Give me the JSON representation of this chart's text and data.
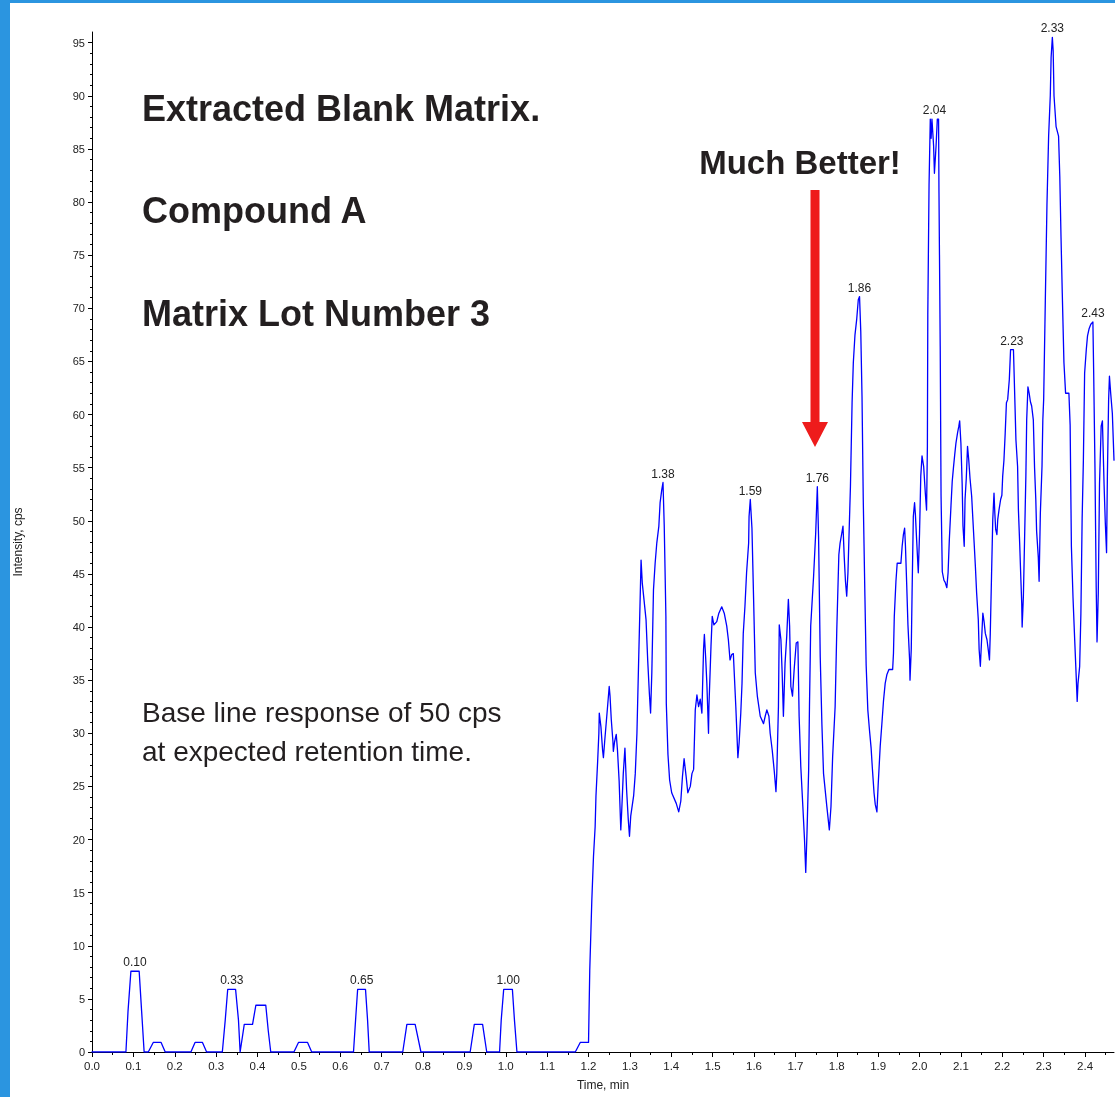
{
  "chart_data": {
    "type": "line",
    "xlabel": "Time, min",
    "ylabel": "Intensity, cps",
    "color": "#0000ff",
    "marker": "none",
    "line_style": "solid",
    "xlim": [
      0,
      2.47
    ],
    "ylim": [
      0,
      96
    ],
    "xticks": [
      {
        "value": 0,
        "label": "0.0"
      },
      0.1,
      0.2,
      0.3,
      0.4,
      0.5,
      0.6,
      0.7,
      0.8,
      0.9,
      {
        "value": 1,
        "label": "1.0"
      },
      1.1,
      1.2,
      1.3,
      1.4,
      1.5,
      1.6,
      1.7,
      1.8,
      1.9,
      {
        "value": 2,
        "label": "2.0"
      },
      2.1,
      2.2,
      2.3,
      2.4
    ],
    "yticks": [
      0,
      5,
      10,
      15,
      20,
      25,
      30,
      35,
      40,
      45,
      50,
      55,
      60,
      65,
      70,
      75,
      80,
      85,
      90,
      95
    ],
    "x": [
      0,
      0.082,
      0.087,
      0.094,
      0.114,
      0.12,
      0.126,
      0.136,
      0.148,
      0.167,
      0.177,
      0.239,
      0.249,
      0.267,
      0.277,
      0.315,
      0.322,
      0.328,
      0.347,
      0.354,
      0.358,
      0.368,
      0.388,
      0.396,
      0.42,
      0.426,
      0.432,
      0.488,
      0.499,
      0.521,
      0.531,
      0.632,
      0.637,
      0.642,
      0.661,
      0.666,
      0.67,
      0.751,
      0.761,
      0.781,
      0.795,
      0.914,
      0.924,
      0.944,
      0.954,
      0.985,
      0.989,
      0.995,
      1.016,
      1.021,
      1.027,
      1.168,
      1.18,
      1.2,
      1.203,
      1.208,
      1.212,
      1.216,
      1.218,
      1.222,
      1.225,
      1.226,
      1.23,
      1.234,
      1.236,
      1.239,
      1.246,
      1.25,
      1.252,
      1.255,
      1.259,
      1.26,
      1.263,
      1.267,
      1.27,
      1.274,
      1.278,
      1.28,
      1.284,
      1.288,
      1.292,
      1.296,
      1.299,
      1.302,
      1.309,
      1.313,
      1.317,
      1.321,
      1.325,
      1.327,
      1.33,
      1.334,
      1.339,
      1.343,
      1.347,
      1.35,
      1.353,
      1.357,
      1.361,
      1.365,
      1.37,
      1.373,
      1.377,
      1.38,
      1.383,
      1.387,
      1.388,
      1.392,
      1.396,
      1.401,
      1.412,
      1.418,
      1.423,
      1.427,
      1.431,
      1.436,
      1.44,
      1.446,
      1.45,
      1.454,
      1.458,
      1.462,
      1.466,
      1.47,
      1.474,
      1.478,
      1.48,
      1.483,
      1.486,
      1.49,
      1.491,
      1.496,
      1.499,
      1.503,
      1.51,
      1.515,
      1.522,
      1.528,
      1.534,
      1.538,
      1.542,
      1.546,
      1.55,
      1.556,
      1.561,
      1.564,
      1.568,
      1.571,
      1.574,
      1.578,
      1.582,
      1.587,
      1.588,
      1.591,
      1.595,
      1.599,
      1.603,
      1.608,
      1.615,
      1.623,
      1.627,
      1.631,
      1.636,
      1.639,
      1.644,
      1.649,
      1.653,
      1.655,
      1.659,
      1.661,
      1.665,
      1.668,
      1.671,
      1.675,
      1.679,
      1.683,
      1.686,
      1.689,
      1.693,
      1.697,
      1.702,
      1.706,
      1.709,
      1.713,
      1.718,
      1.722,
      1.725,
      1.728,
      1.732,
      1.734,
      1.737,
      1.744,
      1.749,
      1.753,
      1.756,
      1.76,
      1.764,
      1.768,
      1.776,
      1.782,
      1.786,
      1.79,
      1.796,
      1.8,
      1.805,
      1.808,
      1.812,
      1.815,
      1.818,
      1.821,
      1.824,
      1.827,
      1.83,
      1.833,
      1.837,
      1.84,
      1.844,
      1.848,
      1.852,
      1.855,
      1.858,
      1.861,
      1.864,
      1.868,
      1.871,
      1.875,
      1.879,
      1.883,
      1.886,
      1.89,
      1.893,
      1.897,
      1.9,
      1.905,
      1.909,
      1.913,
      1.917,
      1.921,
      1.926,
      1.935,
      1.937,
      1.939,
      1.943,
      1.946,
      1.955,
      1.958,
      1.961,
      1.964,
      1.966,
      1.969,
      1.972,
      1.976,
      1.977,
      1.98,
      1.982,
      1.985,
      1.988,
      1.99,
      1.993,
      1.997,
      2.0,
      2.003,
      2.006,
      2.01,
      2.014,
      2.017,
      2.019,
      2.02,
      2.023,
      2.026,
      2.028,
      2.03,
      2.034,
      2.036,
      2.04,
      2.043,
      2.046,
      2.047,
      2.05,
      2.052,
      2.055,
      2.059,
      2.062,
      2.066,
      2.069,
      2.072,
      2.076,
      2.079,
      2.082,
      2.085,
      2.088,
      2.092,
      2.095,
      2.097,
      2.1,
      2.103,
      2.105,
      2.108,
      2.11,
      2.113,
      2.116,
      2.119,
      2.122,
      2.126,
      2.129,
      2.132,
      2.135,
      2.138,
      2.142,
      2.144,
      2.147,
      2.15,
      2.153,
      2.156,
      2.159,
      2.163,
      2.166,
      2.169,
      2.171,
      2.174,
      2.177,
      2.18,
      2.182,
      2.184,
      2.187,
      2.189,
      2.192,
      2.196,
      2.199,
      2.201,
      2.204,
      2.207,
      2.21,
      2.213,
      2.217,
      2.22,
      2.227,
      2.229,
      2.233,
      2.237,
      2.239,
      2.242,
      2.245,
      2.247,
      2.248,
      2.251,
      2.254,
      2.257,
      2.259,
      2.262,
      2.265,
      2.268,
      2.271,
      2.275,
      2.278,
      2.281,
      2.283,
      2.287,
      2.289,
      2.292,
      2.296,
      2.298,
      2.3,
      2.304,
      2.308,
      2.312,
      2.316,
      2.318,
      2.321,
      2.323,
      2.325,
      2.33,
      2.336,
      2.339,
      2.342,
      2.345,
      2.349,
      2.353,
      2.361,
      2.364,
      2.367,
      2.371,
      2.375,
      2.379,
      2.381,
      2.383,
      2.387,
      2.39,
      2.393,
      2.396,
      2.399,
      2.403,
      2.406,
      2.41,
      2.414,
      2.419,
      2.421,
      2.424,
      2.427,
      2.429,
      2.432,
      2.435,
      2.439,
      2.442,
      2.446,
      2.449,
      2.452,
      2.454,
      2.457,
      2.459,
      2.462,
      2.466,
      2.47
    ],
    "values": [
      0,
      0,
      3.8,
      7.6,
      7.6,
      3.8,
      0,
      0,
      0.9,
      0.9,
      0,
      0,
      0.9,
      0.9,
      0,
      0,
      3,
      5.9,
      5.9,
      3,
      0,
      2.6,
      2.6,
      4.4,
      4.4,
      2,
      0,
      0,
      0.9,
      0.9,
      0,
      0,
      3,
      5.9,
      5.9,
      3,
      0,
      0,
      2.6,
      2.6,
      0,
      0,
      2.6,
      2.6,
      0,
      0,
      3,
      5.9,
      5.9,
      3,
      0,
      0,
      0.9,
      0.9,
      7.7,
      14.3,
      18.4,
      21.2,
      24.1,
      27.3,
      30.0,
      31.9,
      30.6,
      28.4,
      27.7,
      29.2,
      32.5,
      34.4,
      33.5,
      31.3,
      29.2,
      28.3,
      29.2,
      29.9,
      28.4,
      25.5,
      20.9,
      22.5,
      26.2,
      28.6,
      24.7,
      21.9,
      20.3,
      22.2,
      24.1,
      26.2,
      30.0,
      36.6,
      43.0,
      46.3,
      44.1,
      42.6,
      40.7,
      36.9,
      33.8,
      31.9,
      35.7,
      43.5,
      46.0,
      47.9,
      49.5,
      51.7,
      52.9,
      53.6,
      49.5,
      41.0,
      32.8,
      28.0,
      25.6,
      24.4,
      23.4,
      22.6,
      23.6,
      25.9,
      27.6,
      25.9,
      24.4,
      25.0,
      26.2,
      26.6,
      32.2,
      33.6,
      32.5,
      33.2,
      31.9,
      37.9,
      39.3,
      37.2,
      34.7,
      30.0,
      32.5,
      38.2,
      41.0,
      40.2,
      40.5,
      41.3,
      41.9,
      41.3,
      40.1,
      38.8,
      36.9,
      37.4,
      37.5,
      32.5,
      27.7,
      29.1,
      31.9,
      34.7,
      39.4,
      41.9,
      45.1,
      47.9,
      50.4,
      52.0,
      49.3,
      42.6,
      35.7,
      33.5,
      31.6,
      30.9,
      31.6,
      32.2,
      31.6,
      30.0,
      28.4,
      26.4,
      24.5,
      26.2,
      32.5,
      40.2,
      38.8,
      35.7,
      31.6,
      36.6,
      39.1,
      42.6,
      40.1,
      34.4,
      33.5,
      36.0,
      38.5,
      38.6,
      31.6,
      26.9,
      23.1,
      20.0,
      16.9,
      20.6,
      26.5,
      32.5,
      40.1,
      44.8,
      48.8,
      53.2,
      48.5,
      37.2,
      30.9,
      26.2,
      23.1,
      20.9,
      23.1,
      27.8,
      32.5,
      39.7,
      46.8,
      47.9,
      48.8,
      49.5,
      46.6,
      44.3,
      42.9,
      45.1,
      49.2,
      53.2,
      61.1,
      64.9,
      67.5,
      68.9,
      70.8,
      71.1,
      67.8,
      61.7,
      52.0,
      42.9,
      36.4,
      32.2,
      30.3,
      28.6,
      26.7,
      24.4,
      23.3,
      22.6,
      25.1,
      28.8,
      30.9,
      33.1,
      34.7,
      35.5,
      36.0,
      36.0,
      37.5,
      41.0,
      44.3,
      46.0,
      46.0,
      47.6,
      48.7,
      49.3,
      47.6,
      44.0,
      40.2,
      36.9,
      35.0,
      37.9,
      43.2,
      50.4,
      51.7,
      50.6,
      48.2,
      45.1,
      48.8,
      54.2,
      56.1,
      55.1,
      52.6,
      51.0,
      57.0,
      69.4,
      81.6,
      87.8,
      86.0,
      87.8,
      85.3,
      82.7,
      85.3,
      87.8,
      87.8,
      80.9,
      66.4,
      52.4,
      45.2,
      44.4,
      44.2,
      43.7,
      45.1,
      48.2,
      51.4,
      53.7,
      55.0,
      56.2,
      57.3,
      58.3,
      58.9,
      59.4,
      57.3,
      53.5,
      49.5,
      47.6,
      52.0,
      54.0,
      57.0,
      55.7,
      54.0,
      52.3,
      50.1,
      47.9,
      45.7,
      43.2,
      40.7,
      37.9,
      36.3,
      38.8,
      41.3,
      40.5,
      39.4,
      38.8,
      37.9,
      36.9,
      39.4,
      44.8,
      50.1,
      52.6,
      50.7,
      49.2,
      48.7,
      50.1,
      51.0,
      52.0,
      52.4,
      54.2,
      55.7,
      58.2,
      61.1,
      61.4,
      63.3,
      66.1,
      66.1,
      63.3,
      57.6,
      55.1,
      51.0,
      47.9,
      44.4,
      42.2,
      40.0,
      42.9,
      48.5,
      54.2,
      59.5,
      62.6,
      62.0,
      61.2,
      60.8,
      59.5,
      55.0,
      52.0,
      49.0,
      46.6,
      44.3,
      50.7,
      55.1,
      59.5,
      61.4,
      70.7,
      79.8,
      86.2,
      90.0,
      93.6,
      95.5,
      94.2,
      90.0,
      87.1,
      86.2,
      82.4,
      76.6,
      71.4,
      64.9,
      62.0,
      62.0,
      59.0,
      47.6,
      42.7,
      38.8,
      35.0,
      33.0,
      34.7,
      36.3,
      41.3,
      50.2,
      55.7,
      63.9,
      66.1,
      67.4,
      68.1,
      68.5,
      68.7,
      63.6,
      55.0,
      43.7,
      38.6,
      43.2,
      53.5,
      58.9,
      59.4,
      53.4,
      49.8,
      47.0,
      54.2,
      61.4,
      63.6,
      62.0,
      60.1,
      55.7
    ],
    "annotations": [
      "Extracted Blank Matrix.",
      "Compound A",
      "Matrix Lot Number 3",
      "Base line response of 50 cps at expected retention time.",
      "Much Better!",
      {
        "text": "0.10",
        "x": 0.104,
        "y": 7.6
      },
      {
        "text": "0.33",
        "x": 0.338,
        "y": 5.9
      },
      {
        "text": "0.65",
        "x": 0.652,
        "y": 5.9
      },
      {
        "text": "1.00",
        "x": 1.006,
        "y": 5.9
      },
      {
        "text": "1.38",
        "x": 1.38,
        "y": 53.6
      },
      {
        "text": "1.59",
        "x": 1.591,
        "y": 52.0
      },
      {
        "text": "1.76",
        "x": 1.753,
        "y": 53.2
      },
      {
        "text": "1.86",
        "x": 1.855,
        "y": 71.1
      },
      {
        "text": "2.04",
        "x": 2.036,
        "y": 87.8
      },
      {
        "text": "2.23",
        "x": 2.223,
        "y": 66.1
      },
      {
        "text": "2.33",
        "x": 2.321,
        "y": 95.5
      },
      {
        "text": "2.43",
        "x": 2.419,
        "y": 68.7
      }
    ]
  }
}
